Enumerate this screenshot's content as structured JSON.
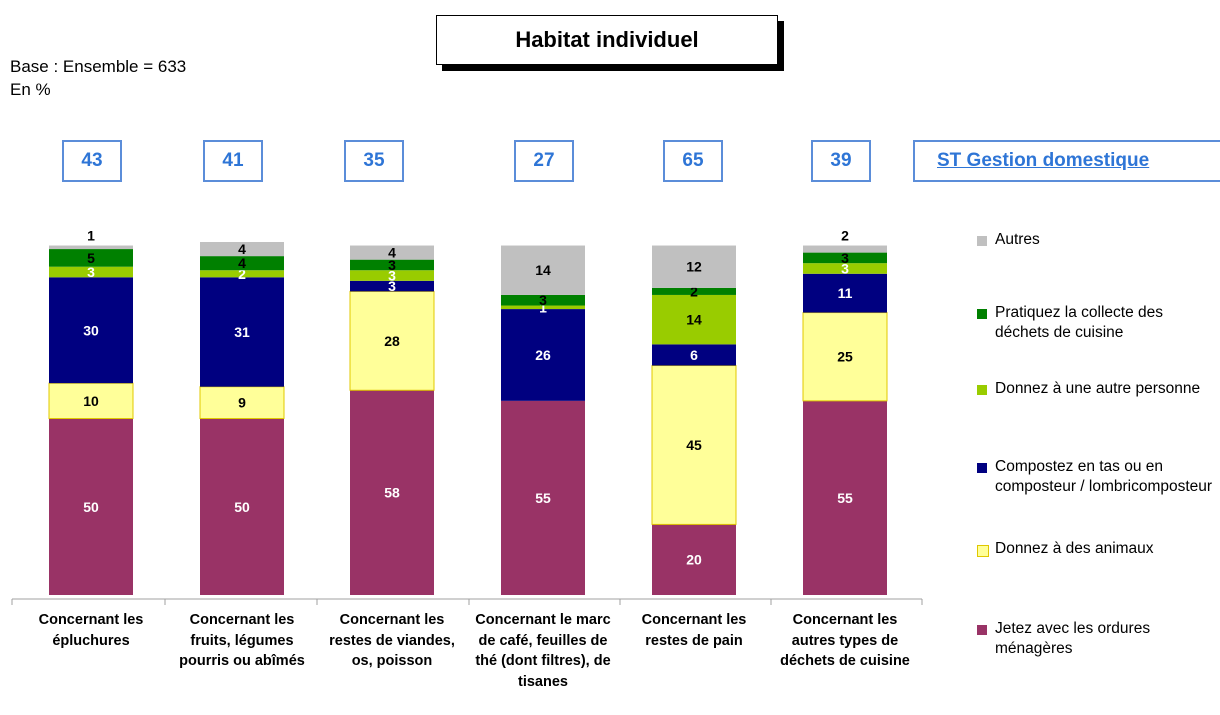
{
  "title": "Habitat individuel",
  "base_line1": "Base : Ensemble = 633",
  "base_line2": "En %",
  "st_label": "ST Gestion domestique",
  "st_values": [
    "43",
    "41",
    "35",
    "27",
    "65",
    "39"
  ],
  "colors": {
    "accent_border": "#5b8dd9",
    "accent_text": "#2e75d6"
  },
  "chart_data": {
    "type": "bar",
    "stacked": true,
    "percent_stacked": true,
    "ylim": [
      0,
      100
    ],
    "categories": [
      "Concernant les épluchures",
      "Concernant les fruits, légumes pourris ou abîmés",
      "Concernant les restes de viandes, os, poisson",
      "Concernant le marc de café, feuilles de thé (dont filtres), de tisanes",
      "Concernant les restes de pain",
      "Concernant les autres types de déchets de cuisine"
    ],
    "series": [
      {
        "name": "Jetez avec les ordures ménagères",
        "color": "#993366",
        "values": [
          50,
          50,
          58,
          55,
          20,
          55
        ]
      },
      {
        "name": "Donnez à des animaux",
        "color": "#ffff99",
        "values": [
          10,
          9,
          28,
          0,
          45,
          25
        ]
      },
      {
        "name": "Compostez en tas ou en composteur / lombricomposteur",
        "color": "#000080",
        "values": [
          30,
          31,
          3,
          26,
          6,
          11
        ]
      },
      {
        "name": "Donnez à une autre personne",
        "color": "#99cc00",
        "values": [
          3,
          2,
          3,
          1,
          14,
          3
        ]
      },
      {
        "name": "Pratiquez la collecte des déchets de cuisine",
        "color": "#008000",
        "values": [
          5,
          4,
          3,
          3,
          2,
          3
        ]
      },
      {
        "name": "Autres",
        "color": "#c0c0c0",
        "values": [
          1,
          4,
          4,
          14,
          12,
          2
        ]
      }
    ],
    "legend_position": "right",
    "grid": false
  }
}
